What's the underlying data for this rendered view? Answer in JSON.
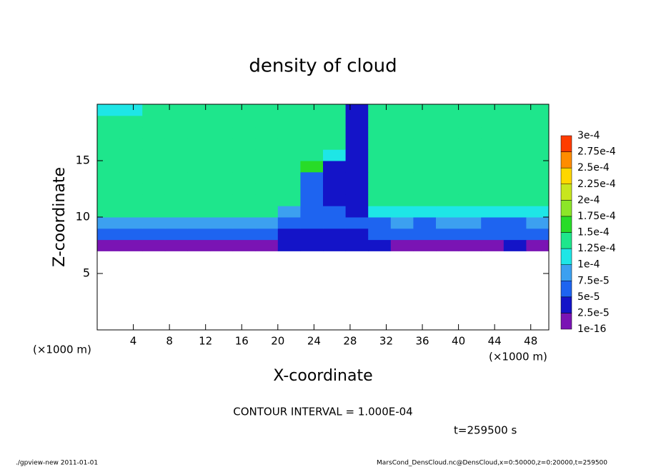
{
  "chart_data": {
    "type": "heatmap",
    "title": "density of cloud",
    "x_label": "X-coordinate",
    "y_label": "Z-coordinate",
    "x_unit": "(×1000 m)",
    "x_unit_right": "(×1000 m)",
    "xlim": [
      0,
      50
    ],
    "ylim": [
      0,
      20
    ],
    "xticks": [
      4,
      8,
      12,
      16,
      20,
      24,
      28,
      32,
      36,
      40,
      44,
      48
    ],
    "yticks": [
      5,
      10,
      15
    ],
    "xbins": [
      0,
      2.5,
      5,
      7.5,
      10,
      12.5,
      15,
      17.5,
      20,
      22.5,
      25,
      27.5,
      30,
      32.5,
      35,
      37.5,
      40,
      42.5,
      45,
      47.5,
      50
    ],
    "zbins": [
      7,
      8,
      9,
      10,
      11,
      12,
      13,
      14,
      15,
      16,
      17,
      18,
      19,
      20
    ],
    "values": [
      [
        2e-05,
        2e-05,
        2e-05,
        2e-05,
        2e-05,
        2e-05,
        2e-05,
        2e-05,
        3e-05,
        4e-05,
        4e-05,
        4e-05,
        3e-05,
        2e-05,
        2e-05,
        2e-05,
        2e-05,
        2e-05,
        3e-05,
        2e-05
      ],
      [
        6e-05,
        6e-05,
        6e-05,
        6e-05,
        6e-05,
        6e-05,
        6e-05,
        6e-05,
        4e-05,
        3e-05,
        3e-05,
        3e-05,
        5e-05,
        6e-05,
        5e-05,
        6e-05,
        6e-05,
        6e-05,
        5e-05,
        6e-05
      ],
      [
        9e-05,
        9e-05,
        9e-05,
        9e-05,
        9e-05,
        9e-05,
        9e-05,
        9e-05,
        6e-05,
        5e-05,
        5e-05,
        5e-05,
        7e-05,
        8e-05,
        7e-05,
        8e-05,
        8e-05,
        7e-05,
        6e-05,
        9e-05
      ],
      [
        0.00013,
        0.00013,
        0.00013,
        0.00013,
        0.00013,
        0.00013,
        0.00013,
        0.00013,
        8e-05,
        5e-05,
        5e-05,
        4e-05,
        0.00011,
        0.00011,
        0.00011,
        0.00012,
        0.00012,
        0.00011,
        0.0001,
        0.00012
      ],
      [
        0.000135,
        0.000135,
        0.000135,
        0.000135,
        0.000135,
        0.000135,
        0.000135,
        0.000135,
        0.000135,
        5e-05,
        4e-05,
        3e-05,
        0.000135,
        0.000135,
        0.000135,
        0.000135,
        0.000135,
        0.000135,
        0.000135,
        0.000135
      ],
      [
        0.000135,
        0.000135,
        0.000135,
        0.000135,
        0.000135,
        0.000135,
        0.000135,
        0.000135,
        0.000135,
        5e-05,
        4e-05,
        3e-05,
        0.000135,
        0.000135,
        0.000135,
        0.000135,
        0.000135,
        0.000135,
        0.000135,
        0.000135
      ],
      [
        0.000135,
        0.000135,
        0.000135,
        0.000135,
        0.000135,
        0.000135,
        0.000135,
        0.000135,
        0.000135,
        5e-05,
        4e-05,
        3e-05,
        0.000135,
        0.000135,
        0.000135,
        0.000135,
        0.000135,
        0.000135,
        0.000135,
        0.000135
      ],
      [
        0.000135,
        0.000135,
        0.000135,
        0.000135,
        0.000135,
        0.000135,
        0.000135,
        0.000135,
        0.000135,
        0.00016,
        4e-05,
        3e-05,
        0.000135,
        0.000135,
        0.000135,
        0.000135,
        0.000135,
        0.000135,
        0.000135,
        0.000135
      ],
      [
        0.000135,
        0.000135,
        0.000135,
        0.000135,
        0.000135,
        0.000135,
        0.000135,
        0.000135,
        0.000135,
        0.00014,
        0.00012,
        3e-05,
        0.000135,
        0.000135,
        0.000135,
        0.000135,
        0.000135,
        0.000135,
        0.000135,
        0.000135
      ],
      [
        0.000135,
        0.000135,
        0.000135,
        0.000135,
        0.000135,
        0.000135,
        0.000135,
        0.000135,
        0.000135,
        0.000135,
        0.000135,
        3e-05,
        0.000135,
        0.000135,
        0.000135,
        0.000135,
        0.000135,
        0.000135,
        0.000135,
        0.000135
      ],
      [
        0.000135,
        0.000135,
        0.000135,
        0.000135,
        0.000135,
        0.000135,
        0.000135,
        0.000135,
        0.000135,
        0.000135,
        0.000135,
        3e-05,
        0.000135,
        0.000135,
        0.000135,
        0.000135,
        0.000135,
        0.000135,
        0.000135,
        0.000135
      ],
      [
        0.000135,
        0.000135,
        0.000135,
        0.000135,
        0.000135,
        0.000135,
        0.000135,
        0.000135,
        0.000135,
        0.000135,
        0.000135,
        3e-05,
        0.000135,
        0.000135,
        0.000135,
        0.000135,
        0.000135,
        0.000135,
        0.000135,
        0.000135
      ],
      [
        0.00012,
        0.00012,
        0.000135,
        0.000135,
        0.000135,
        0.000135,
        0.000135,
        0.000135,
        0.000135,
        0.000135,
        0.000135,
        3e-05,
        0.000135,
        0.000135,
        0.000135,
        0.000135,
        0.000135,
        0.000135,
        0.000135,
        0.000135
      ]
    ],
    "levels": [
      {
        "value": 1e-16,
        "label": "1e-16"
      },
      {
        "value": 2.5e-05,
        "label": "2.5e-5"
      },
      {
        "value": 5e-05,
        "label": "5e-5"
      },
      {
        "value": 7.5e-05,
        "label": "7.5e-5"
      },
      {
        "value": 0.0001,
        "label": "1e-4"
      },
      {
        "value": 0.000125,
        "label": "1.25e-4"
      },
      {
        "value": 0.00015,
        "label": "1.5e-4"
      },
      {
        "value": 0.000175,
        "label": "1.75e-4"
      },
      {
        "value": 0.0002,
        "label": "2e-4"
      },
      {
        "value": 0.000225,
        "label": "2.25e-4"
      },
      {
        "value": 0.00025,
        "label": "2.5e-4"
      },
      {
        "value": 0.000275,
        "label": "2.75e-4"
      },
      {
        "value": 0.0003,
        "label": "3e-4"
      }
    ],
    "colors": [
      "#7a14b4",
      "#1414c8",
      "#1e64f0",
      "#3ca0f0",
      "#1ee6e6",
      "#1ee68c",
      "#28dc28",
      "#8ce628",
      "#c8e61e",
      "#ffd700",
      "#ff8c00",
      "#ff3c00",
      "#ff9090"
    ],
    "annotations": {
      "contour": "CONTOUR INTERVAL = 1.000E-04",
      "time": "t=259500 s",
      "footer_left": "./gpview-new  2011-01-01",
      "footer_right": "MarsCond_DensCloud.nc@DensCloud,x=0:50000,z=0:20000,t=259500"
    }
  }
}
